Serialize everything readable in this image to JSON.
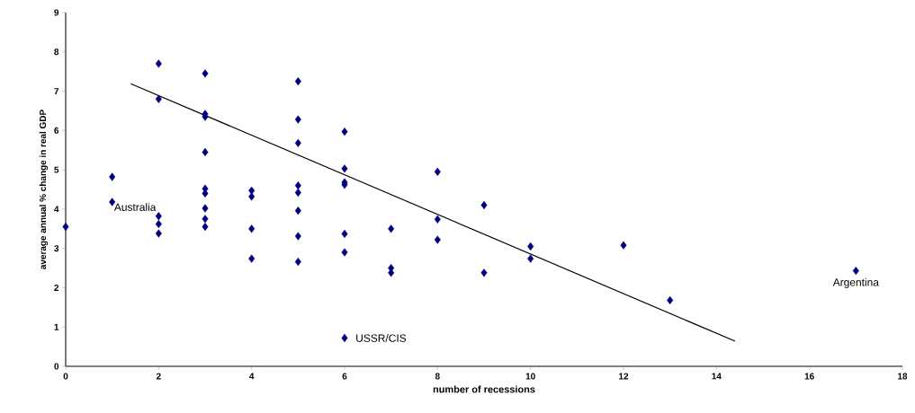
{
  "chart_data": {
    "type": "scatter",
    "xlabel": "number of recessions",
    "ylabel": "average annual % change in real GDP",
    "xlim": [
      0,
      18
    ],
    "ylim": [
      0,
      9
    ],
    "xticks": [
      0,
      2,
      4,
      6,
      8,
      10,
      12,
      14,
      16,
      18
    ],
    "yticks": [
      0,
      1,
      2,
      3,
      4,
      5,
      6,
      7,
      8,
      9
    ],
    "marker": "diamond",
    "grid": false,
    "series": [
      {
        "color": "#000080",
        "x": [
          0,
          1,
          1,
          2,
          2,
          2,
          2,
          2,
          3,
          3,
          3,
          3,
          3,
          3,
          3,
          3,
          3,
          4,
          4,
          4,
          4,
          5,
          5,
          5,
          5,
          5,
          5,
          5,
          5,
          6,
          6,
          6,
          6,
          6,
          6,
          6,
          7,
          7,
          7,
          8,
          8,
          8,
          9,
          9,
          10,
          10,
          12,
          13,
          17
        ],
        "values": [
          3.55,
          4.82,
          4.18,
          7.7,
          6.8,
          3.82,
          3.62,
          3.38,
          7.45,
          6.42,
          6.35,
          5.45,
          4.52,
          4.4,
          4.02,
          3.75,
          3.55,
          4.47,
          4.32,
          3.5,
          2.74,
          7.25,
          6.28,
          5.68,
          4.6,
          4.42,
          3.96,
          3.31,
          2.66,
          5.97,
          5.03,
          4.68,
          4.62,
          3.37,
          2.9,
          0.72,
          3.5,
          2.5,
          2.38,
          4.95,
          3.74,
          3.22,
          4.1,
          2.38,
          3.05,
          2.74,
          3.08,
          1.68,
          2.43
        ]
      },
      {
        "type": "line",
        "marker": "none",
        "color": "#000000",
        "x": [
          1.4,
          14.4
        ],
        "values": [
          7.19,
          0.64
        ]
      }
    ],
    "annotations": [
      {
        "text": "Australia",
        "x": 1,
        "y": 4.18
      },
      {
        "text": "USSR/CIS",
        "x": 6,
        "y": 0.72
      },
      {
        "text": "Argentina",
        "x": 17,
        "y": 2.43
      }
    ]
  }
}
